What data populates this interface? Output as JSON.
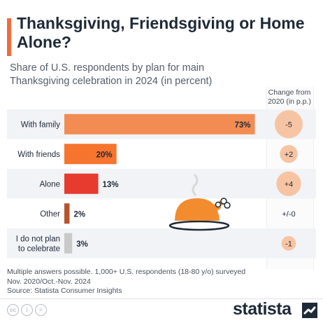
{
  "header": {
    "title": "Thanksgiving, Friendsgiving or Home Alone?",
    "subtitle": "Share of U.S. respondents by plan for main Thanksgiving celebration in 2024 (in percent)"
  },
  "change_header": "Change from 2020 (in p.p.)",
  "chart_data": {
    "type": "bar",
    "orientation": "horizontal",
    "categories": [
      "With family",
      "With friends",
      "Alone",
      "Other",
      "I do not plan to celebrate"
    ],
    "values": [
      73,
      20,
      13,
      2,
      3
    ],
    "value_labels": [
      "73%",
      "20%",
      "13%",
      "2%",
      "3%"
    ],
    "bar_colors": [
      "#f28c52",
      "#f6742e",
      "#e63b2e",
      "#b5532c",
      "#c9c9c9"
    ],
    "change": [
      "-5",
      "+2",
      "+4",
      "+/-0",
      "-1"
    ],
    "change_circle_sizes": [
      5,
      2,
      4,
      0,
      1
    ],
    "xlim": [
      0,
      75
    ],
    "grid": false,
    "legend": "none"
  },
  "footer": {
    "note": "Multiple answers possible. 1,000+ U.S. respondents (18-80 y/o) surveyed Nov. 2020/Oct.-Nov. 2024",
    "source": "Source: Statista Consumer Insights",
    "brand": "statista",
    "license_icons": [
      "cc-icon",
      "person-icon",
      "equals-icon"
    ]
  },
  "colors": {
    "accent": "#f26b3a",
    "title": "#1f2a38",
    "change_circle": "#f7c4a3"
  }
}
